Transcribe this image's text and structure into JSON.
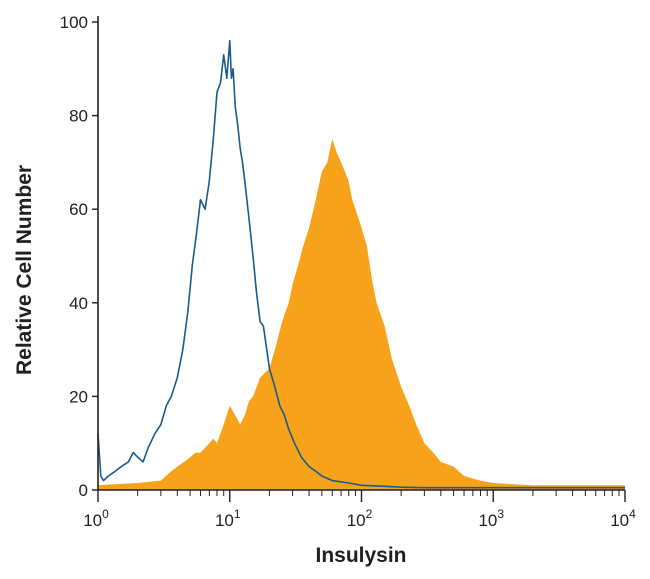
{
  "chart_data": {
    "type": "area",
    "xlabel": "Insulysin",
    "ylabel": "Relative Cell Number",
    "x_scale": "log",
    "xlim": [
      1,
      10000
    ],
    "ylim": [
      0,
      100
    ],
    "x_ticks": [
      {
        "base": "10",
        "exp": "0"
      },
      {
        "base": "10",
        "exp": "1"
      },
      {
        "base": "10",
        "exp": "2"
      },
      {
        "base": "10",
        "exp": "3"
      },
      {
        "base": "10",
        "exp": "4"
      }
    ],
    "y_ticks": [
      "0",
      "20",
      "40",
      "60",
      "80",
      "100"
    ],
    "y_tick_values": [
      0,
      20,
      40,
      60,
      80,
      100
    ],
    "grid": false,
    "series": [
      {
        "style": "outline",
        "color": "#1a5a8c",
        "x": [
          1.0,
          1.05,
          1.1,
          1.2,
          1.35,
          1.5,
          1.7,
          1.85,
          2.0,
          2.2,
          2.4,
          2.7,
          3.0,
          3.3,
          3.6,
          4.0,
          4.4,
          4.8,
          5.2,
          5.6,
          6.0,
          6.5,
          7.0,
          7.5,
          8.0,
          8.5,
          9.0,
          9.5,
          10.0,
          10.3,
          10.6,
          11.0,
          11.5,
          12.0,
          12.5,
          13.0,
          14.0,
          15.0,
          16.0,
          17.0,
          18.0,
          20.0,
          22.0,
          24.0,
          26.0,
          28.0,
          31.0,
          35.0,
          40.0,
          45.0,
          50.0,
          60.0,
          80.0,
          100.0,
          150.0,
          200.0,
          300.0,
          500.0,
          1000.0,
          2000.0,
          5000.0,
          10000.0
        ],
        "y": [
          12,
          3,
          2,
          3,
          4,
          5,
          6,
          8,
          7,
          6,
          9,
          12,
          14,
          18,
          20,
          24,
          30,
          38,
          48,
          55,
          62,
          60,
          66,
          75,
          85,
          87,
          93,
          88,
          96,
          88,
          90,
          82,
          78,
          73,
          70,
          66,
          58,
          50,
          42,
          36,
          35,
          26,
          22,
          18,
          16,
          13,
          10,
          7,
          5,
          4,
          3,
          2,
          1.5,
          1,
          0.8,
          0.6,
          0.5,
          0.5,
          0.5,
          0.5,
          0.5,
          0.5
        ]
      },
      {
        "style": "filled",
        "color": "#f7a21b",
        "x": [
          1.0,
          2.0,
          3.0,
          3.6,
          4.0,
          4.5,
          5.0,
          5.5,
          6.0,
          7.0,
          7.5,
          8.0,
          9.0,
          10.0,
          11.0,
          12.0,
          13.0,
          14.0,
          15.0,
          17.0,
          20.0,
          22.0,
          25.0,
          28.0,
          30.0,
          33.0,
          36.0,
          40.0,
          45.0,
          50.0,
          55.0,
          60.0,
          65.0,
          70.0,
          75.0,
          80.0,
          85.0,
          90.0,
          95.0,
          100.0,
          110.0,
          120.0,
          130.0,
          150.0,
          170.0,
          200.0,
          230.0,
          260.0,
          300.0,
          350.0,
          400.0,
          500.0,
          600.0,
          800.0,
          1000.0,
          2000.0,
          3000.0,
          5000.0,
          10000.0
        ],
        "y": [
          1,
          1.5,
          2,
          4,
          5,
          6,
          7,
          8,
          8,
          10,
          11,
          10,
          14,
          18,
          16,
          14,
          16,
          19,
          20,
          24,
          26,
          30,
          36,
          40,
          44,
          48,
          52,
          56,
          62,
          68,
          70,
          75,
          72,
          70,
          68,
          66,
          62,
          60,
          58,
          56,
          52,
          45,
          40,
          35,
          28,
          22,
          18,
          14,
          10,
          8,
          6,
          5,
          3,
          2,
          1.5,
          1,
          1,
          1,
          1
        ]
      }
    ]
  }
}
